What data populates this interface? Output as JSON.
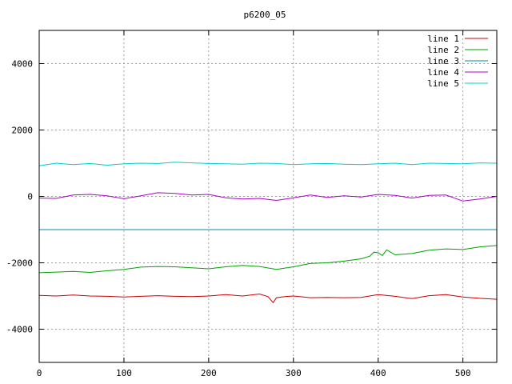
{
  "chart_data": {
    "type": "line",
    "title": "p6200_05",
    "xlabel": "",
    "ylabel": "",
    "xlim": [
      0,
      540
    ],
    "ylim": [
      -5000,
      5000
    ],
    "x_ticks": [
      0,
      100,
      200,
      300,
      400,
      500
    ],
    "y_ticks": [
      -4000,
      -2000,
      0,
      2000,
      4000
    ],
    "grid": true,
    "legend_position": "top-right",
    "series": [
      {
        "name": "line 1",
        "color": "#cc0000",
        "x": [
          0,
          20,
          40,
          60,
          80,
          100,
          120,
          140,
          160,
          180,
          200,
          220,
          240,
          260,
          270,
          276,
          280,
          290,
          300,
          320,
          340,
          360,
          380,
          400,
          420,
          440,
          460,
          480,
          500,
          520,
          540
        ],
        "values": [
          -2980,
          -3000,
          -2970,
          -3000,
          -3010,
          -3030,
          -3010,
          -2990,
          -3010,
          -3020,
          -3000,
          -2960,
          -3000,
          -2940,
          -3020,
          -3200,
          -3050,
          -3020,
          -3000,
          -3050,
          -3040,
          -3050,
          -3040,
          -2960,
          -3010,
          -3080,
          -2990,
          -2960,
          -3030,
          -3070,
          -3100
        ]
      },
      {
        "name": "line 2",
        "color": "#00a000",
        "x": [
          0,
          20,
          40,
          60,
          80,
          100,
          120,
          140,
          160,
          180,
          200,
          220,
          240,
          260,
          280,
          300,
          320,
          340,
          360,
          380,
          390,
          395,
          400,
          405,
          410,
          420,
          440,
          460,
          480,
          500,
          520,
          540
        ],
        "values": [
          -2300,
          -2280,
          -2260,
          -2290,
          -2240,
          -2200,
          -2130,
          -2110,
          -2120,
          -2150,
          -2180,
          -2120,
          -2080,
          -2110,
          -2200,
          -2120,
          -2020,
          -2000,
          -1950,
          -1880,
          -1800,
          -1680,
          -1700,
          -1780,
          -1610,
          -1760,
          -1720,
          -1620,
          -1580,
          -1600,
          -1520,
          -1480
        ]
      },
      {
        "name": "line 3",
        "color": "#0088aa",
        "x": [
          0,
          540
        ],
        "values": [
          -1000,
          -1000
        ]
      },
      {
        "name": "line 4",
        "color": "#aa00cc",
        "x": [
          0,
          20,
          40,
          60,
          80,
          100,
          120,
          140,
          160,
          180,
          200,
          220,
          240,
          260,
          280,
          300,
          320,
          340,
          360,
          380,
          400,
          420,
          440,
          460,
          480,
          500,
          520,
          540
        ],
        "values": [
          -50,
          -60,
          40,
          60,
          20,
          -70,
          20,
          110,
          90,
          40,
          60,
          -40,
          -80,
          -60,
          -120,
          -40,
          40,
          -30,
          20,
          -20,
          60,
          30,
          -50,
          30,
          40,
          -140,
          -80,
          0
        ]
      },
      {
        "name": "line 5",
        "color": "#00cccc",
        "x": [
          0,
          20,
          40,
          60,
          80,
          100,
          120,
          140,
          160,
          180,
          200,
          220,
          240,
          260,
          280,
          300,
          320,
          340,
          360,
          380,
          400,
          420,
          440,
          460,
          480,
          500,
          520,
          540
        ],
        "values": [
          920,
          1000,
          960,
          990,
          940,
          980,
          1000,
          990,
          1030,
          1010,
          990,
          980,
          970,
          1000,
          990,
          960,
          980,
          990,
          970,
          960,
          980,
          1000,
          960,
          1000,
          990,
          980,
          1010,
          1000
        ]
      }
    ]
  }
}
